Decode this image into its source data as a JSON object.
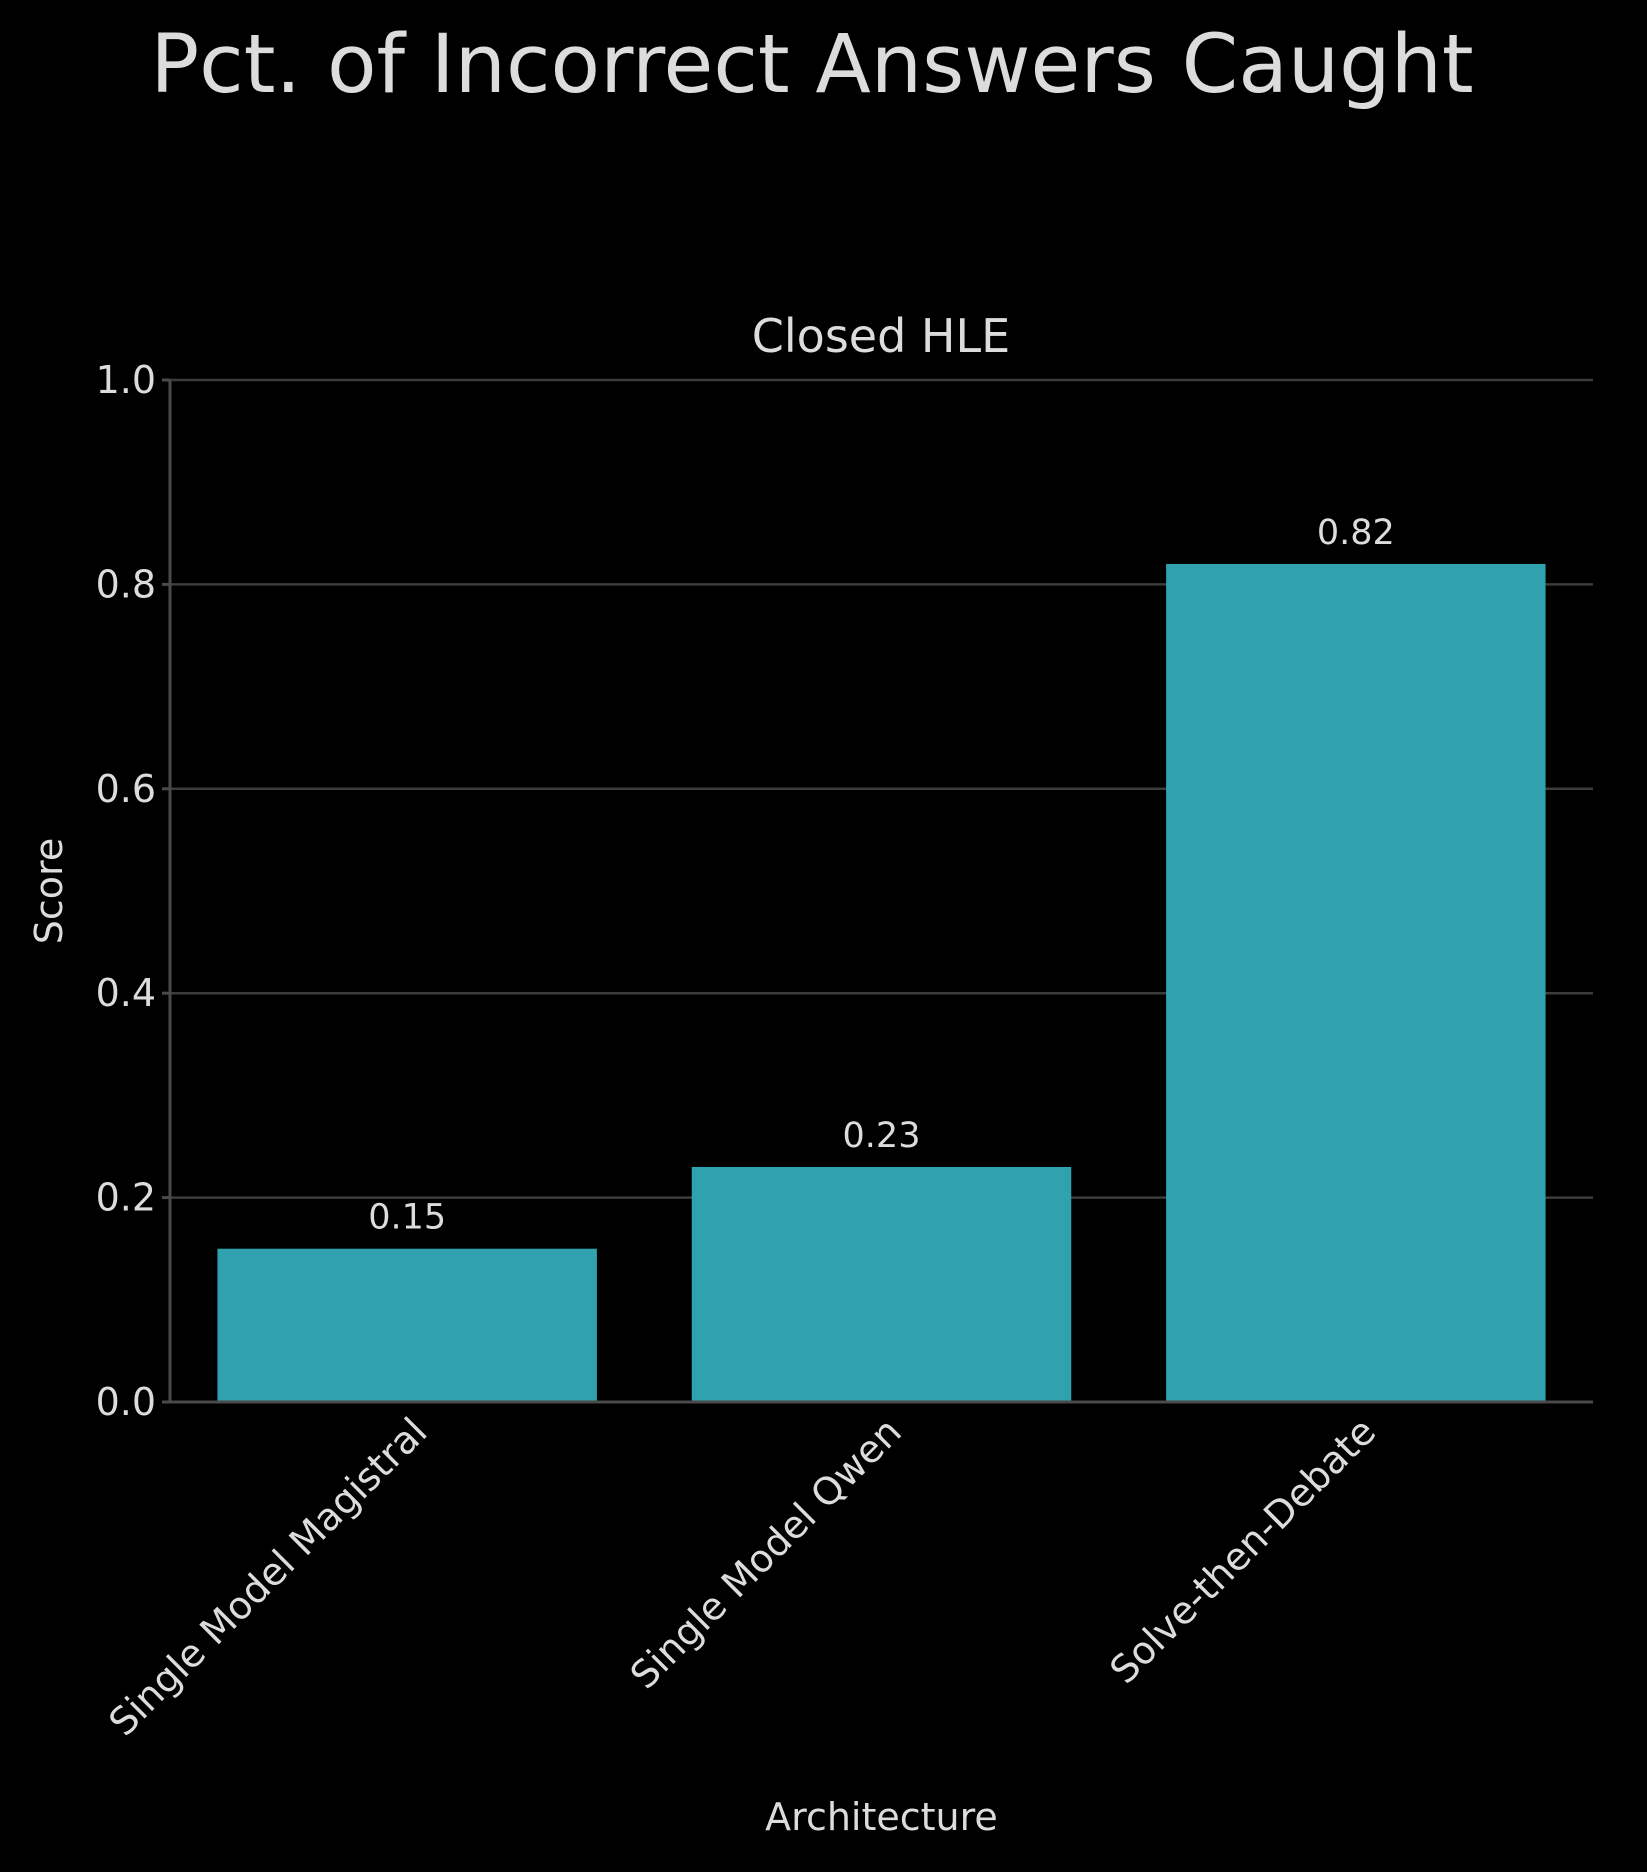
{
  "figure": {
    "title": "Pct. of Incorrect Answers Caught",
    "background": "#000000",
    "text_color": "#dcdcdc",
    "grid_color": "#3c3c3c"
  },
  "chart_data": {
    "type": "bar",
    "title": "Closed HLE",
    "xlabel": "Architecture",
    "ylabel": "Score",
    "categories": [
      "Single Model Magistral",
      "Single Model Qwen",
      "Solve-then-Debate"
    ],
    "values": [
      0.15,
      0.23,
      0.82
    ],
    "value_labels": [
      "0.15",
      "0.23",
      "0.82"
    ],
    "ylim": [
      0,
      1.0
    ],
    "yticks": [
      0.0,
      0.2,
      0.4,
      0.6,
      0.8,
      1.0
    ],
    "ytick_labels": [
      "0.0",
      "0.2",
      "0.4",
      "0.6",
      "0.8",
      "1.0"
    ],
    "bar_color": "#30a1af",
    "grid": true,
    "legend": "none"
  }
}
